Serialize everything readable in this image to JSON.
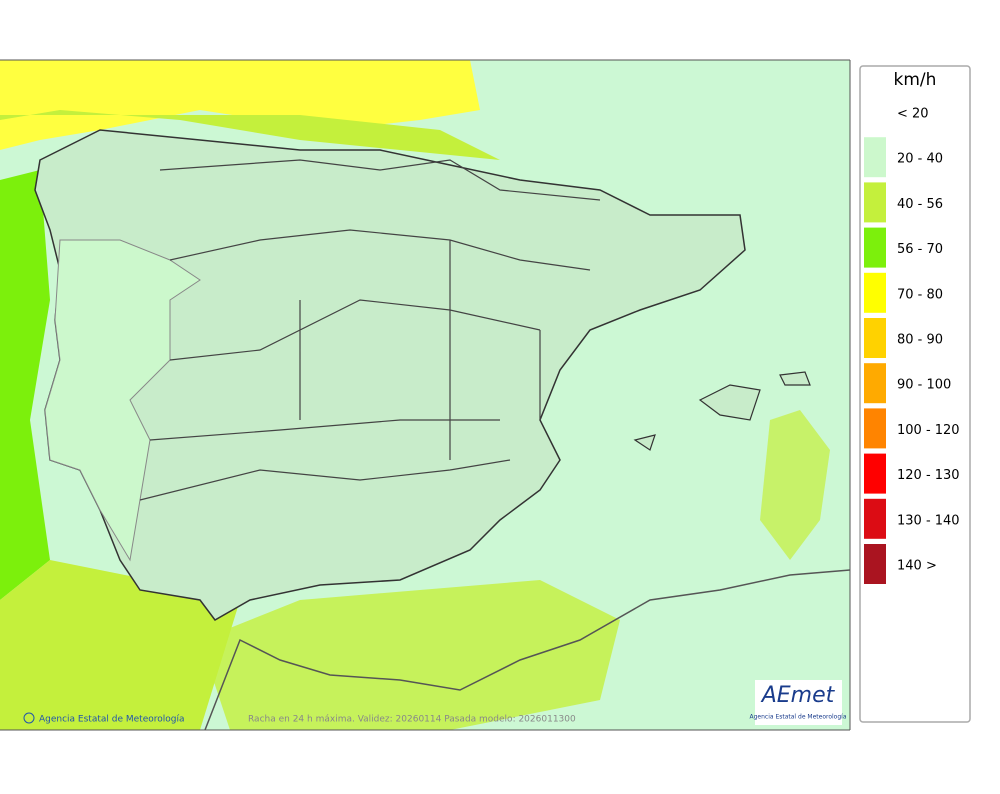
{
  "legend": {
    "title": "km/h",
    "items": [
      {
        "label": "< 20",
        "color": null
      },
      {
        "label": "20 - 40",
        "color": "#ccf8cc"
      },
      {
        "label": "40 - 56",
        "color": "#c4f03c"
      },
      {
        "label": "56 - 70",
        "color": "#7cf00c"
      },
      {
        "label": "70 - 80",
        "color": "#ffff00"
      },
      {
        "label": "80 - 90",
        "color": "#ffd200"
      },
      {
        "label": "90 - 100",
        "color": "#ffaa00"
      },
      {
        "label": "100 - 120",
        "color": "#ff8400"
      },
      {
        "label": "120 - 130",
        "color": "#ff0000"
      },
      {
        "label": "130 - 140",
        "color": "#dc0c14"
      },
      {
        "label": "140 >",
        "color": "#aa1420"
      }
    ]
  },
  "footer": {
    "credit": "Agencia Estatal de Meteorología",
    "caption": "Racha en 24 h máxima. Validez: 20260114 Pasada modelo: 2026011300"
  },
  "logo": {
    "name": "AEmet",
    "subtitle": "Agencia Estatal de Meteorología"
  }
}
